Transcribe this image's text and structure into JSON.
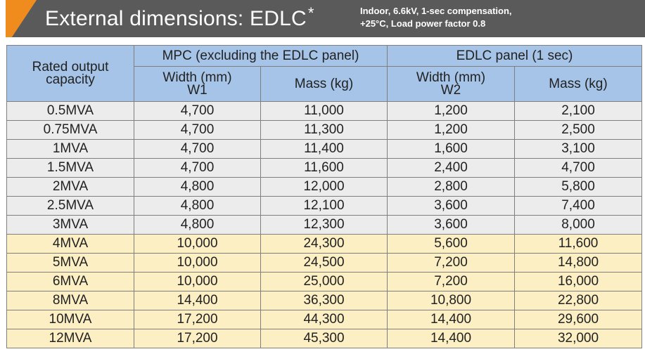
{
  "header": {
    "title": "External dimensions: EDLC",
    "title_mark": "*",
    "note_line1": "Indoor, 6.6kV, 1-sec compensation,",
    "note_line2": "+25°C, Load power factor 0.8"
  },
  "table": {
    "col_capacity_line1": "Rated output",
    "col_capacity_line2": "capacity",
    "group_mpc": "MPC (excluding the EDLC panel)",
    "group_edlc": "EDLC panel (1 sec)",
    "mpc_width_line1": "Width (mm)",
    "mpc_width_line2": "W1",
    "mpc_mass": "Mass (kg)",
    "edlc_width_line1": "Width (mm)",
    "edlc_width_line2": "W2",
    "edlc_mass": "Mass (kg)",
    "rows": [
      [
        "0.5MVA",
        "4,700",
        "11,000",
        "1,200",
        "2,100"
      ],
      [
        "0.75MVA",
        "4,700",
        "11,300",
        "1,200",
        "2,500"
      ],
      [
        "1MVA",
        "4,700",
        "11,400",
        "1,600",
        "3,100"
      ],
      [
        "1.5MVA",
        "4,700",
        "11,600",
        "2,400",
        "4,700"
      ],
      [
        "2MVA",
        "4,800",
        "12,000",
        "2,800",
        "5,800"
      ],
      [
        "2.5MVA",
        "4,800",
        "12,100",
        "3,600",
        "7,400"
      ],
      [
        "3MVA",
        "4,800",
        "12,300",
        "3,600",
        "8,000"
      ],
      [
        "4MVA",
        "10,000",
        "24,300",
        "5,600",
        "11,600"
      ],
      [
        "5MVA",
        "10,000",
        "24,500",
        "7,200",
        "14,800"
      ],
      [
        "6MVA",
        "10,000",
        "25,000",
        "7,200",
        "16,000"
      ],
      [
        "8MVA",
        "14,400",
        "36,300",
        "10,800",
        "22,800"
      ],
      [
        "10MVA",
        "17,200",
        "44,300",
        "14,400",
        "29,600"
      ],
      [
        "12MVA",
        "17,200",
        "45,300",
        "14,400",
        "32,000"
      ]
    ]
  },
  "colors": {
    "title_bar": "#5a5a5b",
    "accent": "#f08c1e",
    "header_fill": "#a6c4e7",
    "row_small": "#ececec",
    "row_large": "#fcefc4"
  }
}
